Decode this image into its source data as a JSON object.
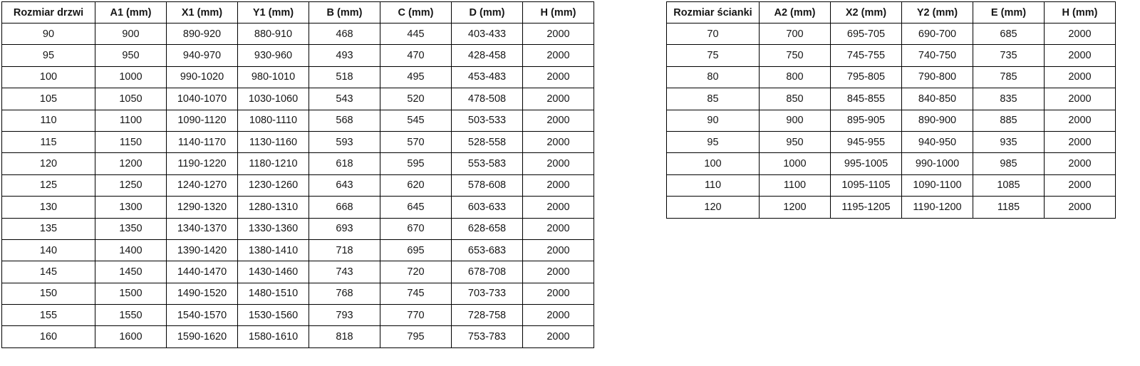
{
  "page": {
    "background_color": "#ffffff",
    "border_color": "#000000",
    "text_color": "#161616"
  },
  "tables": [
    {
      "name": "door-sizes-table",
      "first_col_width": 131,
      "other_col_width": 100,
      "headers": [
        "Rozmiar drzwi",
        "A1 (mm)",
        "X1 (mm)",
        "Y1 (mm)",
        "B (mm)",
        "C (mm)",
        "D (mm)",
        "H (mm)"
      ],
      "rows": [
        [
          "90",
          "900",
          "890-920",
          "880-910",
          "468",
          "445",
          "403-433",
          "2000"
        ],
        [
          "95",
          "950",
          "940-970",
          "930-960",
          "493",
          "470",
          "428-458",
          "2000"
        ],
        [
          "100",
          "1000",
          "990-1020",
          "980-1010",
          "518",
          "495",
          "453-483",
          "2000"
        ],
        [
          "105",
          "1050",
          "1040-1070",
          "1030-1060",
          "543",
          "520",
          "478-508",
          "2000"
        ],
        [
          "110",
          "1100",
          "1090-1120",
          "1080-1110",
          "568",
          "545",
          "503-533",
          "2000"
        ],
        [
          "115",
          "1150",
          "1140-1170",
          "1130-1160",
          "593",
          "570",
          "528-558",
          "2000"
        ],
        [
          "120",
          "1200",
          "1190-1220",
          "1180-1210",
          "618",
          "595",
          "553-583",
          "2000"
        ],
        [
          "125",
          "1250",
          "1240-1270",
          "1230-1260",
          "643",
          "620",
          "578-608",
          "2000"
        ],
        [
          "130",
          "1300",
          "1290-1320",
          "1280-1310",
          "668",
          "645",
          "603-633",
          "2000"
        ],
        [
          "135",
          "1350",
          "1340-1370",
          "1330-1360",
          "693",
          "670",
          "628-658",
          "2000"
        ],
        [
          "140",
          "1400",
          "1390-1420",
          "1380-1410",
          "718",
          "695",
          "653-683",
          "2000"
        ],
        [
          "145",
          "1450",
          "1440-1470",
          "1430-1460",
          "743",
          "720",
          "678-708",
          "2000"
        ],
        [
          "150",
          "1500",
          "1490-1520",
          "1480-1510",
          "768",
          "745",
          "703-733",
          "2000"
        ],
        [
          "155",
          "1550",
          "1540-1570",
          "1530-1560",
          "793",
          "770",
          "728-758",
          "2000"
        ],
        [
          "160",
          "1600",
          "1590-1620",
          "1580-1610",
          "818",
          "795",
          "753-783",
          "2000"
        ]
      ]
    },
    {
      "name": "wall-panel-sizes-table",
      "first_col_width": 130,
      "other_col_width": 100,
      "headers": [
        "Rozmiar ścianki",
        "A2 (mm)",
        "X2 (mm)",
        "Y2 (mm)",
        "E (mm)",
        "H (mm)"
      ],
      "rows": [
        [
          "70",
          "700",
          "695-705",
          "690-700",
          "685",
          "2000"
        ],
        [
          "75",
          "750",
          "745-755",
          "740-750",
          "735",
          "2000"
        ],
        [
          "80",
          "800",
          "795-805",
          "790-800",
          "785",
          "2000"
        ],
        [
          "85",
          "850",
          "845-855",
          "840-850",
          "835",
          "2000"
        ],
        [
          "90",
          "900",
          "895-905",
          "890-900",
          "885",
          "2000"
        ],
        [
          "95",
          "950",
          "945-955",
          "940-950",
          "935",
          "2000"
        ],
        [
          "100",
          "1000",
          "995-1005",
          "990-1000",
          "985",
          "2000"
        ],
        [
          "110",
          "1100",
          "1095-1105",
          "1090-1100",
          "1085",
          "2000"
        ],
        [
          "120",
          "1200",
          "1195-1205",
          "1190-1200",
          "1185",
          "2000"
        ]
      ]
    }
  ]
}
